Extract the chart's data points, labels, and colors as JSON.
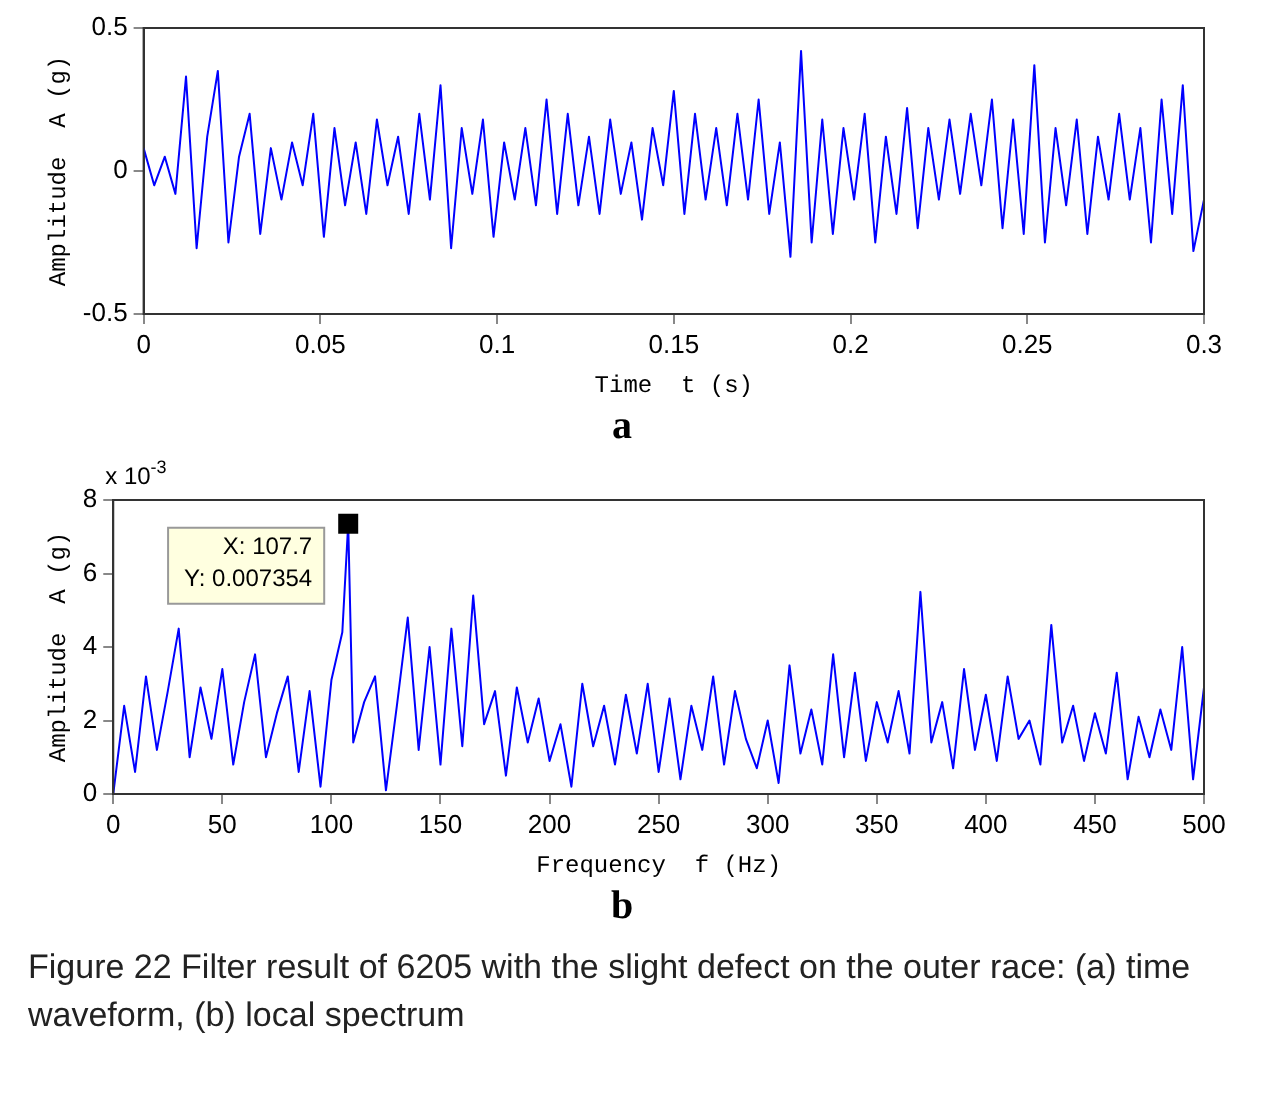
{
  "chart_data": [
    {
      "type": "line",
      "title": "a",
      "xlabel": "Time  t (s)",
      "ylabel": "Amplitude  A (g)",
      "legend": false,
      "grid": false,
      "xlim": [
        0,
        0.3
      ],
      "xticks": [
        0,
        0.05,
        0.1,
        0.15,
        0.2,
        0.25,
        0.3
      ],
      "ylim": [
        -0.5,
        0.5
      ],
      "yticks": [
        -0.5,
        0,
        0.5
      ],
      "series": [
        {
          "color": "#0000ff",
          "x": [
            0,
            0.003,
            0.006,
            0.009,
            0.012,
            0.015,
            0.018,
            0.021,
            0.024,
            0.027,
            0.03,
            0.033,
            0.036,
            0.039,
            0.042,
            0.045,
            0.048,
            0.051,
            0.054,
            0.057,
            0.06,
            0.063,
            0.066,
            0.069,
            0.072,
            0.075,
            0.078,
            0.081,
            0.084,
            0.087,
            0.09,
            0.093,
            0.096,
            0.099,
            0.102,
            0.105,
            0.108,
            0.111,
            0.114,
            0.117,
            0.12,
            0.123,
            0.126,
            0.129,
            0.132,
            0.135,
            0.138,
            0.141,
            0.144,
            0.147,
            0.15,
            0.153,
            0.156,
            0.159,
            0.162,
            0.165,
            0.168,
            0.171,
            0.174,
            0.177,
            0.18,
            0.183,
            0.186,
            0.189,
            0.192,
            0.195,
            0.198,
            0.201,
            0.204,
            0.207,
            0.21,
            0.213,
            0.216,
            0.219,
            0.222,
            0.225,
            0.228,
            0.231,
            0.234,
            0.237,
            0.24,
            0.243,
            0.246,
            0.249,
            0.252,
            0.255,
            0.258,
            0.261,
            0.264,
            0.267,
            0.27,
            0.273,
            0.276,
            0.279,
            0.282,
            0.285,
            0.288,
            0.291,
            0.294,
            0.297,
            0.3
          ],
          "values": [
            0.08,
            -0.05,
            0.05,
            -0.08,
            0.33,
            -0.27,
            0.12,
            0.35,
            -0.25,
            0.05,
            0.2,
            -0.22,
            0.08,
            -0.1,
            0.1,
            -0.05,
            0.2,
            -0.23,
            0.15,
            -0.12,
            0.1,
            -0.15,
            0.18,
            -0.05,
            0.12,
            -0.15,
            0.2,
            -0.1,
            0.3,
            -0.27,
            0.15,
            -0.08,
            0.18,
            -0.23,
            0.1,
            -0.1,
            0.15,
            -0.12,
            0.25,
            -0.15,
            0.2,
            -0.12,
            0.12,
            -0.15,
            0.18,
            -0.08,
            0.1,
            -0.17,
            0.15,
            -0.05,
            0.28,
            -0.15,
            0.2,
            -0.1,
            0.15,
            -0.12,
            0.2,
            -0.1,
            0.25,
            -0.15,
            0.1,
            -0.3,
            0.42,
            -0.25,
            0.18,
            -0.22,
            0.15,
            -0.1,
            0.2,
            -0.25,
            0.12,
            -0.15,
            0.22,
            -0.2,
            0.15,
            -0.1,
            0.18,
            -0.08,
            0.2,
            -0.05,
            0.25,
            -0.2,
            0.18,
            -0.22,
            0.37,
            -0.25,
            0.15,
            -0.12,
            0.18,
            -0.22,
            0.12,
            -0.1,
            0.2,
            -0.1,
            0.15,
            -0.25,
            0.25,
            -0.15,
            0.3,
            -0.28,
            -0.1
          ]
        }
      ]
    },
    {
      "type": "line",
      "title": "b",
      "xlabel": "Frequency  f (Hz)",
      "ylabel": "Amplitude  A (g)",
      "legend": false,
      "grid": false,
      "xlim": [
        0,
        500
      ],
      "xticks": [
        0,
        50,
        100,
        150,
        200,
        250,
        300,
        350,
        400,
        450,
        500
      ],
      "ylim": [
        0,
        8
      ],
      "yticks": [
        0,
        2,
        4,
        6,
        8
      ],
      "annotations": [
        "x 10$^{-3}$",
        {
          "text": "X: 107.7\nY: 0.007354",
          "x": 107.7,
          "y": 7.354
        },
        "Figure 22  Filter result of 6205 with the slight defect on the outer race: (a) time waveform, (b) local spectrum"
      ],
      "series": [
        {
          "color": "#0000ff",
          "x": [
            0,
            5,
            10,
            15,
            20,
            25,
            30,
            35,
            40,
            45,
            50,
            55,
            60,
            65,
            70,
            75,
            80,
            85,
            90,
            95,
            100,
            105,
            107.7,
            110,
            115,
            120,
            125,
            130,
            135,
            140,
            145,
            150,
            155,
            160,
            165,
            170,
            175,
            180,
            185,
            190,
            195,
            200,
            205,
            210,
            215,
            220,
            225,
            230,
            235,
            240,
            245,
            250,
            255,
            260,
            265,
            270,
            275,
            280,
            285,
            290,
            295,
            300,
            305,
            310,
            315,
            320,
            325,
            330,
            335,
            340,
            345,
            350,
            355,
            360,
            365,
            370,
            375,
            380,
            385,
            390,
            395,
            400,
            405,
            410,
            415,
            420,
            425,
            430,
            435,
            440,
            445,
            450,
            455,
            460,
            465,
            470,
            475,
            480,
            485,
            490,
            495,
            500
          ],
          "values": [
            0,
            2.4,
            0.6,
            3.2,
            1.2,
            2.8,
            4.5,
            1,
            2.9,
            1.5,
            3.4,
            0.8,
            2.5,
            3.8,
            1,
            2.2,
            3.2,
            0.6,
            2.8,
            0.2,
            3.1,
            4.4,
            7.354,
            1.4,
            2.5,
            3.2,
            0.1,
            2.4,
            4.8,
            1.2,
            4,
            0.8,
            4.5,
            1.3,
            5.4,
            1.9,
            2.8,
            0.5,
            2.9,
            1.4,
            2.6,
            0.9,
            1.9,
            0.2,
            3,
            1.3,
            2.4,
            0.8,
            2.7,
            1.1,
            3,
            0.6,
            2.6,
            0.4,
            2.4,
            1.2,
            3.2,
            0.8,
            2.8,
            1.5,
            0.7,
            2,
            0.3,
            3.5,
            1.1,
            2.3,
            0.8,
            3.8,
            1,
            3.3,
            0.9,
            2.5,
            1.4,
            2.8,
            1.1,
            5.5,
            1.4,
            2.5,
            0.7,
            3.4,
            1.2,
            2.7,
            0.9,
            3.2,
            1.5,
            2,
            0.8,
            4.6,
            1.4,
            2.4,
            0.9,
            2.2,
            1.1,
            3.3,
            0.4,
            2.1,
            1,
            2.3,
            1.2,
            4,
            0.4,
            2.9
          ]
        }
      ]
    }
  ]
}
